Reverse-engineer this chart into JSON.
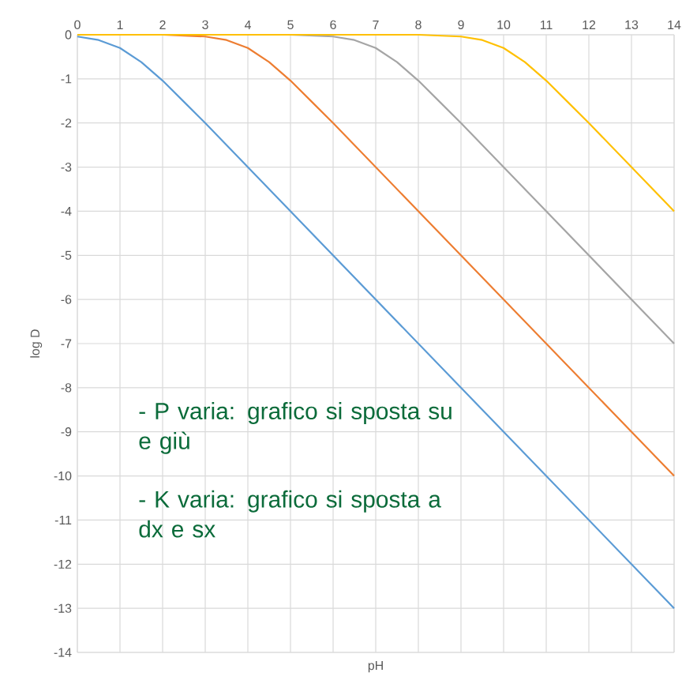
{
  "chart_data": {
    "type": "line",
    "xlabel": "pH",
    "ylabel": "log D",
    "xlim": [
      0,
      14
    ],
    "xticks": [
      0,
      1,
      2,
      3,
      4,
      5,
      6,
      7,
      8,
      9,
      10,
      11,
      12,
      13,
      14
    ],
    "ylim": [
      -14,
      0
    ],
    "yticks": [
      0,
      -1,
      -2,
      -3,
      -4,
      -5,
      -6,
      -7,
      -8,
      -9,
      -10,
      -11,
      -12,
      -13,
      -14
    ],
    "grid": true,
    "marker": "none",
    "line_style": "solid",
    "series": [
      {
        "color": "#5b9bd5",
        "x": [
          0,
          0.5,
          1,
          1.5,
          2,
          2.5,
          3,
          14
        ],
        "values": [
          -0.04,
          -0.12,
          -0.3,
          -0.62,
          -1.04,
          -1.52,
          -2.0,
          -13
        ]
      },
      {
        "color": "#ed7d31",
        "x": [
          0,
          2,
          3,
          3.5,
          4,
          4.5,
          5,
          5.5,
          6,
          14
        ],
        "values": [
          0,
          0,
          -0.04,
          -0.12,
          -0.3,
          -0.62,
          -1.04,
          -1.52,
          -2.0,
          -10
        ]
      },
      {
        "color": "#a5a5a5",
        "x": [
          0,
          5,
          6,
          6.5,
          7,
          7.5,
          8,
          8.5,
          9,
          14
        ],
        "values": [
          0,
          0,
          -0.04,
          -0.12,
          -0.3,
          -0.62,
          -1.04,
          -1.52,
          -2.0,
          -7
        ]
      },
      {
        "color": "#ffc000",
        "x": [
          0,
          8,
          9,
          9.5,
          10,
          10.5,
          11,
          11.5,
          12,
          14
        ],
        "values": [
          0,
          0,
          -0.04,
          -0.12,
          -0.3,
          -0.62,
          -1.04,
          -1.52,
          -2.0,
          -4
        ]
      }
    ],
    "annotations": [
      "- P varia: grafico si sposta su e giù",
      "- K varia: grafico si sposta a dx e sx"
    ]
  }
}
